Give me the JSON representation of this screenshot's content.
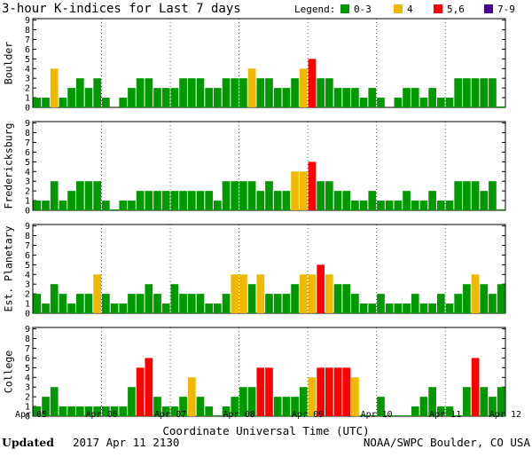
{
  "chart_data": {
    "type": "bar",
    "title": "3-hour K-indices for Last 7 days",
    "legend": {
      "label": "Legend:",
      "items": [
        {
          "label": "0-3",
          "color": "#009900",
          "min": 0,
          "max": 3
        },
        {
          "label": "4",
          "color": "#f0b800",
          "min": 4,
          "max": 4
        },
        {
          "label": "5,6",
          "color": "#ff0000",
          "min": 5,
          "max": 6
        },
        {
          "label": "7-9",
          "color": "#4b0096",
          "min": 7,
          "max": 9
        }
      ]
    },
    "ylim": [
      0,
      9
    ],
    "yticks": [
      0,
      1,
      2,
      3,
      4,
      5,
      6,
      7,
      8,
      9
    ],
    "xlabel": "Coordinate Universal Time (UTC)",
    "x_ticks": [
      "Apr 05",
      "Apr 06",
      "Apr 07",
      "Apr 08",
      "Apr 09",
      "Apr 10",
      "Apr 11",
      "Apr 12"
    ],
    "interval_hours": 3,
    "series": [
      {
        "name": "Boulder",
        "values": [
          1,
          1,
          4,
          1,
          2,
          3,
          2,
          3,
          1,
          0,
          1,
          2,
          3,
          3,
          2,
          2,
          2,
          3,
          3,
          3,
          2,
          2,
          3,
          3,
          3,
          4,
          3,
          3,
          2,
          2,
          3,
          4,
          5,
          3,
          3,
          2,
          2,
          2,
          1,
          2,
          1,
          0,
          1,
          2,
          2,
          1,
          2,
          1,
          1,
          3,
          3,
          3,
          3,
          3,
          0.1
        ]
      },
      {
        "name": "Fredericksburg",
        "values": [
          1,
          1,
          3,
          1,
          2,
          3,
          3,
          3,
          1,
          0.1,
          1,
          1,
          2,
          2,
          2,
          2,
          2,
          2,
          2,
          2,
          2,
          1,
          3,
          3,
          3,
          3,
          2,
          3,
          2,
          2,
          4,
          4,
          5,
          3,
          3,
          2,
          2,
          1,
          1,
          2,
          1,
          1,
          1,
          2,
          1,
          1,
          2,
          1,
          1,
          3,
          3,
          3,
          2,
          3,
          0.1
        ]
      },
      {
        "name": "Est. Planetary",
        "values": [
          2,
          1,
          3,
          2,
          1,
          2,
          2,
          4,
          2,
          1,
          1,
          2,
          2,
          3,
          2,
          1,
          3,
          2,
          2,
          2,
          1,
          1,
          2,
          4,
          4,
          3,
          4,
          2,
          2,
          2,
          3,
          4,
          4,
          5,
          4,
          3,
          3,
          2,
          1,
          1,
          2,
          1,
          1,
          1,
          2,
          1,
          1,
          2,
          1,
          2,
          3,
          4,
          3,
          2,
          3
        ]
      },
      {
        "name": "College",
        "values": [
          1,
          2,
          3,
          1,
          1,
          1,
          1,
          1,
          1,
          1,
          1,
          3,
          5,
          6,
          2,
          1,
          1,
          2,
          4,
          2,
          1,
          0.1,
          1,
          2,
          3,
          3,
          5,
          5,
          2,
          2,
          2,
          3,
          4,
          5,
          5,
          5,
          5,
          4,
          0.1,
          0.1,
          2,
          0.1,
          0.1,
          0.1,
          1,
          2,
          3,
          1,
          1,
          0.1,
          3,
          6,
          3,
          2,
          3
        ]
      }
    ]
  },
  "footer": {
    "updated_label": "Updated",
    "updated_value": "2017 Apr 11 2130",
    "source": "NOAA/SWPC Boulder, CO USA"
  }
}
